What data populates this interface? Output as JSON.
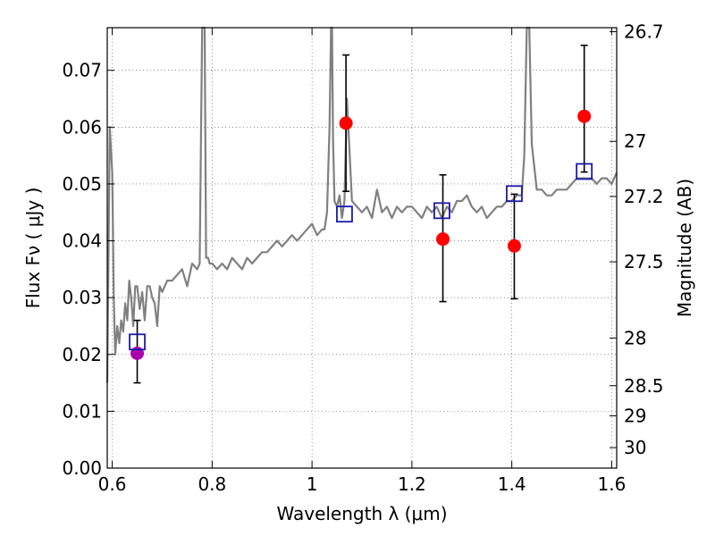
{
  "chart_data": {
    "type": "scatter",
    "xlabel": "Wavelength  λ (μm)",
    "ylabel": "Flux  Fν  ( μJy )",
    "ylabel_right": "Magnitude (AB)",
    "xlim": [
      0.59,
      1.61
    ],
    "ylim": [
      0.0,
      0.0775
    ],
    "grid": true,
    "x_ticks": [
      {
        "value": 0.6,
        "label": "0.6"
      },
      {
        "value": 0.8,
        "label": "0.8"
      },
      {
        "value": 1.0,
        "label": "1"
      },
      {
        "value": 1.2,
        "label": "1.2"
      },
      {
        "value": 1.4,
        "label": "1.4"
      },
      {
        "value": 1.6,
        "label": "1.6"
      }
    ],
    "y_ticks": [
      {
        "value": 0.0,
        "label": "0.00"
      },
      {
        "value": 0.01,
        "label": "0.01"
      },
      {
        "value": 0.02,
        "label": "0.02"
      },
      {
        "value": 0.03,
        "label": "0.03"
      },
      {
        "value": 0.04,
        "label": "0.04"
      },
      {
        "value": 0.05,
        "label": "0.05"
      },
      {
        "value": 0.06,
        "label": "0.06"
      },
      {
        "value": 0.07,
        "label": "0.07"
      }
    ],
    "right_ticks": [
      {
        "flux": 0.0768,
        "label": "26.7"
      },
      {
        "flux": 0.0575,
        "label": "27"
      },
      {
        "flux": 0.0478,
        "label": "27.2"
      },
      {
        "flux": 0.0363,
        "label": "27.5"
      },
      {
        "flux": 0.0229,
        "label": "28"
      },
      {
        "flux": 0.0145,
        "label": "28.5"
      },
      {
        "flux": 0.0092,
        "label": "29"
      },
      {
        "flux": 0.0036,
        "label": "30"
      }
    ],
    "spectrum": {
      "color": "#808080",
      "x": [
        0.59,
        0.595,
        0.6,
        0.603,
        0.606,
        0.61,
        0.614,
        0.618,
        0.622,
        0.626,
        0.63,
        0.634,
        0.638,
        0.642,
        0.646,
        0.65,
        0.655,
        0.66,
        0.665,
        0.67,
        0.675,
        0.68,
        0.685,
        0.69,
        0.695,
        0.7,
        0.71,
        0.72,
        0.73,
        0.74,
        0.75,
        0.76,
        0.77,
        0.775,
        0.78,
        0.785,
        0.788,
        0.79,
        0.792,
        0.795,
        0.8,
        0.81,
        0.82,
        0.83,
        0.84,
        0.85,
        0.86,
        0.87,
        0.88,
        0.89,
        0.9,
        0.91,
        0.92,
        0.93,
        0.94,
        0.95,
        0.96,
        0.97,
        0.98,
        0.99,
        1.0,
        1.01,
        1.02,
        1.025,
        1.03,
        1.035,
        1.038,
        1.04,
        1.042,
        1.045,
        1.05,
        1.055,
        1.06,
        1.065,
        1.07,
        1.08,
        1.09,
        1.1,
        1.11,
        1.12,
        1.13,
        1.14,
        1.15,
        1.16,
        1.17,
        1.18,
        1.19,
        1.2,
        1.21,
        1.22,
        1.23,
        1.24,
        1.25,
        1.26,
        1.27,
        1.28,
        1.29,
        1.3,
        1.31,
        1.32,
        1.33,
        1.34,
        1.35,
        1.36,
        1.37,
        1.38,
        1.39,
        1.4,
        1.41,
        1.42,
        1.425,
        1.43,
        1.435,
        1.44,
        1.45,
        1.46,
        1.47,
        1.48,
        1.49,
        1.5,
        1.51,
        1.52,
        1.53,
        1.54,
        1.55,
        1.56,
        1.57,
        1.58,
        1.59,
        1.6,
        1.61
      ],
      "y": [
        0.015,
        0.06,
        0.052,
        0.03,
        0.02,
        0.025,
        0.022,
        0.026,
        0.024,
        0.029,
        0.026,
        0.033,
        0.03,
        0.025,
        0.032,
        0.032,
        0.028,
        0.031,
        0.026,
        0.032,
        0.032,
        0.03,
        0.029,
        0.025,
        0.032,
        0.031,
        0.033,
        0.033,
        0.034,
        0.035,
        0.032,
        0.036,
        0.035,
        0.036,
        0.08,
        0.08,
        0.037,
        0.037,
        0.037,
        0.036,
        0.036,
        0.035,
        0.036,
        0.035,
        0.037,
        0.036,
        0.035,
        0.037,
        0.036,
        0.037,
        0.038,
        0.038,
        0.039,
        0.04,
        0.039,
        0.04,
        0.041,
        0.04,
        0.041,
        0.042,
        0.043,
        0.041,
        0.042,
        0.042,
        0.045,
        0.06,
        0.08,
        0.08,
        0.058,
        0.047,
        0.046,
        0.048,
        0.044,
        0.047,
        0.065,
        0.047,
        0.046,
        0.045,
        0.046,
        0.044,
        0.049,
        0.045,
        0.046,
        0.044,
        0.046,
        0.045,
        0.046,
        0.046,
        0.045,
        0.044,
        0.046,
        0.045,
        0.046,
        0.044,
        0.046,
        0.045,
        0.047,
        0.047,
        0.048,
        0.046,
        0.045,
        0.046,
        0.044,
        0.045,
        0.046,
        0.046,
        0.047,
        0.047,
        0.048,
        0.048,
        0.055,
        0.08,
        0.08,
        0.057,
        0.049,
        0.049,
        0.048,
        0.048,
        0.049,
        0.049,
        0.049,
        0.05,
        0.051,
        0.051,
        0.051,
        0.051,
        0.05,
        0.051,
        0.051,
        0.05,
        0.052
      ]
    },
    "model_points": {
      "marker": "square",
      "color": "#1a1aaa",
      "x": [
        0.65,
        1.065,
        1.26,
        1.405,
        1.545
      ],
      "y": [
        0.0222,
        0.0447,
        0.0453,
        0.0483,
        0.0522
      ]
    },
    "observed_points": {
      "marker": "circle",
      "color": "#ff0000",
      "x": [
        1.068,
        1.262,
        1.405,
        1.545
      ],
      "y": [
        0.0607,
        0.0403,
        0.0391,
        0.0619
      ],
      "err_low": [
        0.012,
        0.011,
        0.0093,
        0.0098
      ],
      "err_high": [
        0.012,
        0.0113,
        0.0091,
        0.0125
      ]
    },
    "highlight_point": {
      "marker": "circle",
      "color": "#aa00aa",
      "x": 0.65,
      "y": 0.0202,
      "err_low": 0.0052,
      "err_high": 0.0058
    }
  }
}
